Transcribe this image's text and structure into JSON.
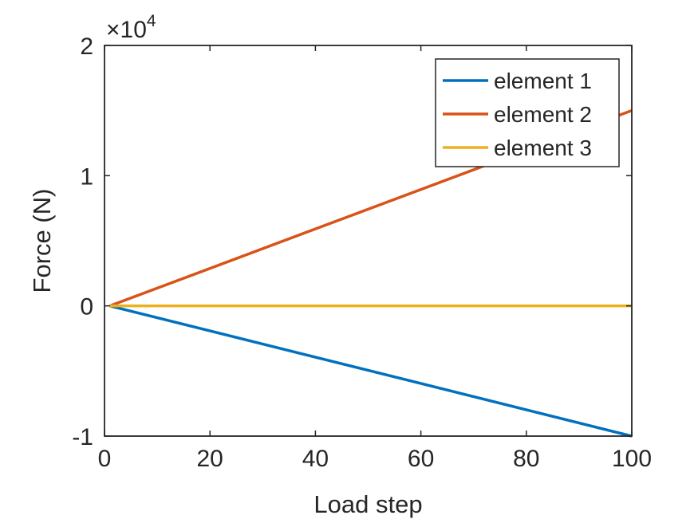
{
  "chart_data": {
    "type": "line",
    "title": "",
    "xlabel": "Load step",
    "ylabel": "Force (N)",
    "xlim": [
      0,
      100
    ],
    "ylim": [
      -10000,
      20000
    ],
    "x_ticks": [
      0,
      20,
      40,
      60,
      80,
      100
    ],
    "x_tick_labels": [
      "0",
      "20",
      "40",
      "60",
      "80",
      "100"
    ],
    "y_ticks": [
      -10000,
      0,
      10000,
      20000
    ],
    "y_tick_labels": [
      "-1",
      "0",
      "1",
      "2"
    ],
    "y_exponent_label": {
      "prefix": "×10",
      "power": "4"
    },
    "grid": false,
    "legend_position": "top-right",
    "series": [
      {
        "name": "element 1",
        "color": "#0072BD",
        "x": [
          1,
          100
        ],
        "y": [
          0,
          -10000
        ]
      },
      {
        "name": "element 2",
        "color": "#D95319",
        "x": [
          1,
          100
        ],
        "y": [
          0,
          15000
        ]
      },
      {
        "name": "element 3",
        "color": "#EDB120",
        "x": [
          1,
          100
        ],
        "y": [
          0,
          0
        ]
      }
    ]
  }
}
